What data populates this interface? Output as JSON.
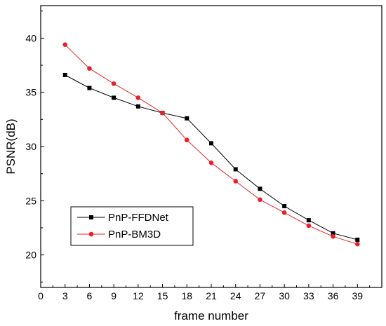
{
  "chart_data": {
    "type": "line",
    "xlabel": "frame number",
    "ylabel": "PSNR(dB)",
    "xlim": [
      0,
      42
    ],
    "ylim": [
      17,
      43
    ],
    "x_ticks": [
      0,
      3,
      6,
      9,
      12,
      15,
      18,
      21,
      24,
      27,
      30,
      33,
      36,
      39
    ],
    "y_ticks": [
      20,
      25,
      30,
      35,
      40
    ],
    "x": [
      3,
      6,
      9,
      12,
      15,
      18,
      21,
      24,
      27,
      30,
      33,
      36,
      39
    ],
    "grid": false,
    "legend_position": "bottom-left",
    "series": [
      {
        "name": "PnP-FFDNet",
        "color": "#000000",
        "marker": "square",
        "values": [
          36.6,
          35.4,
          34.5,
          33.7,
          33.1,
          32.6,
          30.3,
          27.9,
          26.1,
          24.5,
          23.2,
          22.0,
          21.4
        ]
      },
      {
        "name": "PnP-BM3D",
        "color": "#e8202a",
        "marker": "circle",
        "values": [
          39.4,
          37.2,
          35.8,
          34.5,
          33.1,
          30.6,
          28.5,
          26.8,
          25.1,
          23.9,
          22.7,
          21.7,
          21.0
        ]
      }
    ]
  }
}
